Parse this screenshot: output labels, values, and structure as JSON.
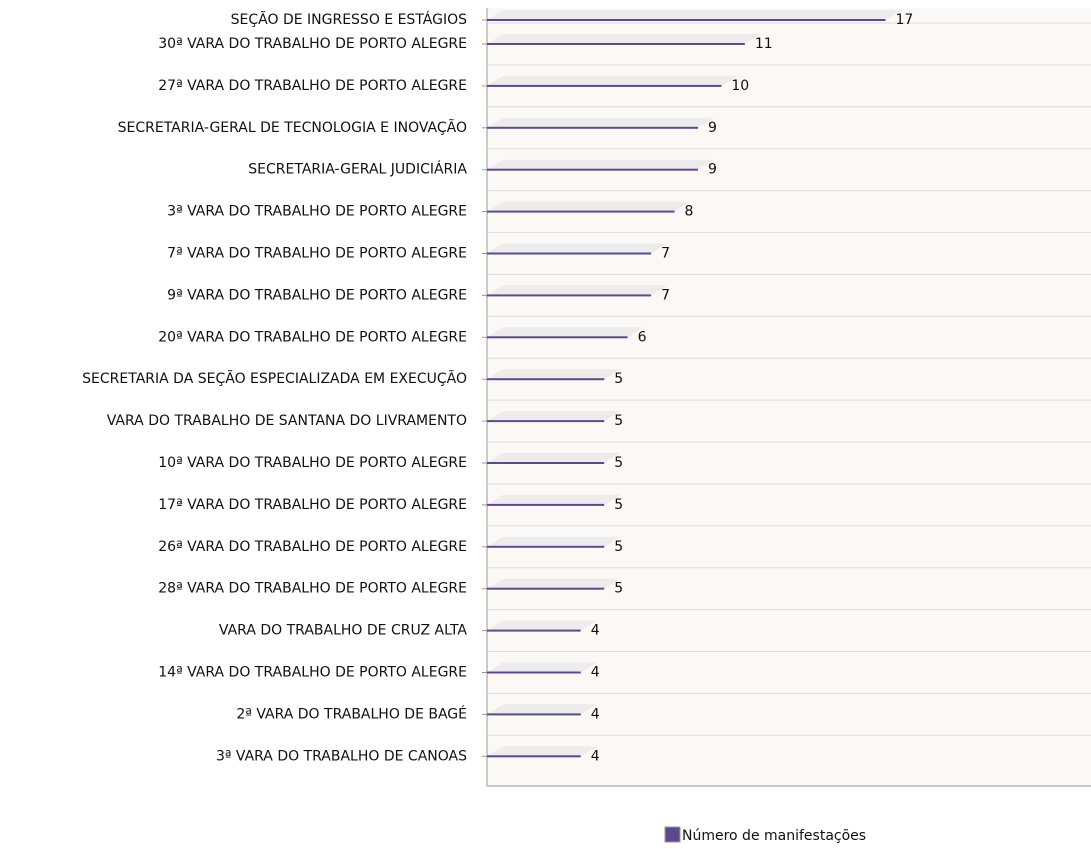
{
  "chart_data": {
    "type": "bar",
    "orientation": "horizontal",
    "categories": [
      "SEÇÃO DE INGRESSO E ESTÁGIOS",
      "30ª VARA DO TRABALHO DE PORTO ALEGRE",
      "27ª VARA DO TRABALHO DE PORTO ALEGRE",
      "SECRETARIA-GERAL DE TECNOLOGIA E INOVAÇÃO",
      "SECRETARIA-GERAL JUDICIÁRIA",
      "3ª VARA DO TRABALHO DE PORTO ALEGRE",
      "7ª VARA DO TRABALHO DE PORTO ALEGRE",
      "9ª VARA DO TRABALHO DE PORTO ALEGRE",
      "20ª VARA DO TRABALHO DE PORTO ALEGRE",
      "SECRETARIA DA SEÇÃO ESPECIALIZADA EM EXECUÇÃO",
      "VARA DO TRABALHO DE SANTANA DO LIVRAMENTO",
      "10ª VARA DO TRABALHO DE PORTO ALEGRE",
      "17ª VARA DO TRABALHO DE PORTO ALEGRE",
      "26ª VARA DO TRABALHO DE PORTO ALEGRE",
      "28ª VARA DO TRABALHO DE PORTO ALEGRE",
      "VARA DO TRABALHO DE CRUZ ALTA",
      "14ª VARA DO TRABALHO DE PORTO ALEGRE",
      "2ª VARA DO TRABALHO DE BAGÉ",
      "3ª VARA DO TRABALHO DE CANOAS"
    ],
    "series": [
      {
        "name": "Número de manifestações",
        "color": "#5e4a8b",
        "values": [
          17,
          11,
          10,
          9,
          9,
          8,
          7,
          7,
          6,
          5,
          5,
          5,
          5,
          5,
          5,
          4,
          4,
          4,
          4
        ]
      }
    ],
    "xlim": [
      0,
      25
    ],
    "legend": "bottom"
  }
}
